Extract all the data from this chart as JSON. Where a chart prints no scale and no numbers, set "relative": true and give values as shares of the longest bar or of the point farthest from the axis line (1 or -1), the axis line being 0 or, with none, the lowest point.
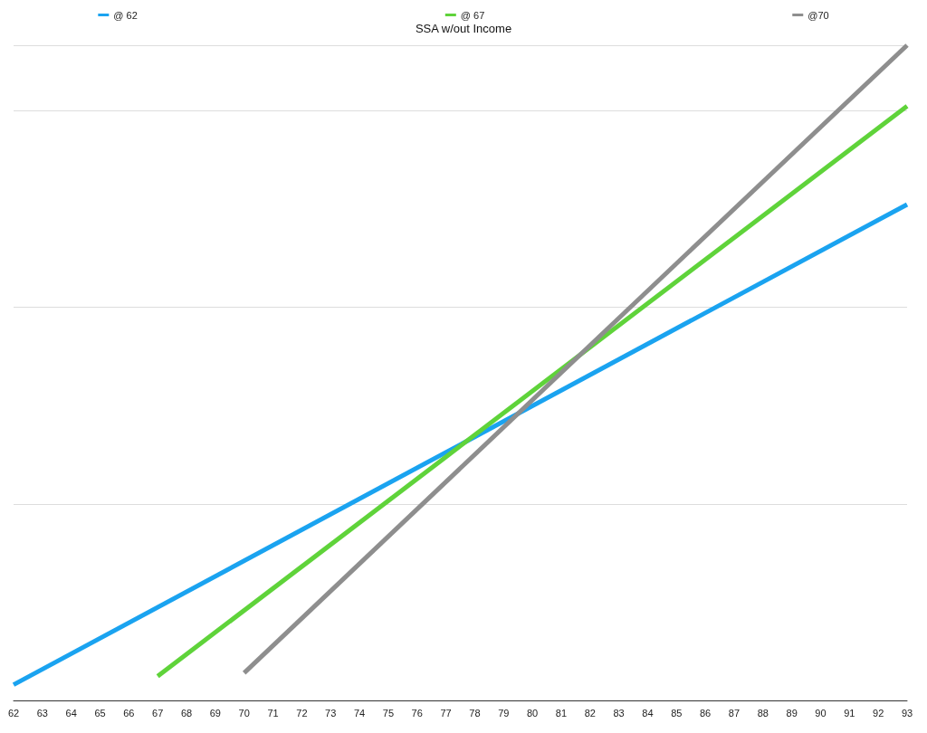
{
  "chart_data": {
    "type": "line",
    "title": "SSA w/out Income",
    "relative": true,
    "legend": "top",
    "grid": "y",
    "marker": "none",
    "line_style": "solid",
    "tick_labels": "x",
    "xlim": [
      62,
      93
    ],
    "xticks": [
      62,
      63,
      64,
      65,
      66,
      67,
      68,
      69,
      70,
      71,
      72,
      73,
      74,
      75,
      76,
      77,
      78,
      79,
      80,
      81,
      82,
      83,
      84,
      85,
      86,
      87,
      88,
      89,
      90,
      91,
      92,
      93
    ],
    "series": [
      {
        "name": "@ 62",
        "color": "#1aa3f0",
        "x": [
          62,
          93
        ],
        "values": [
          0.024,
          0.757
        ]
      },
      {
        "name": "@ 67",
        "color": "#5fd33a",
        "x": [
          67,
          93
        ],
        "values": [
          0.037,
          0.907
        ]
      },
      {
        "name": "@70",
        "color": "#8e8e8e",
        "x": [
          70,
          93
        ],
        "values": [
          0.042,
          1
        ]
      }
    ]
  }
}
